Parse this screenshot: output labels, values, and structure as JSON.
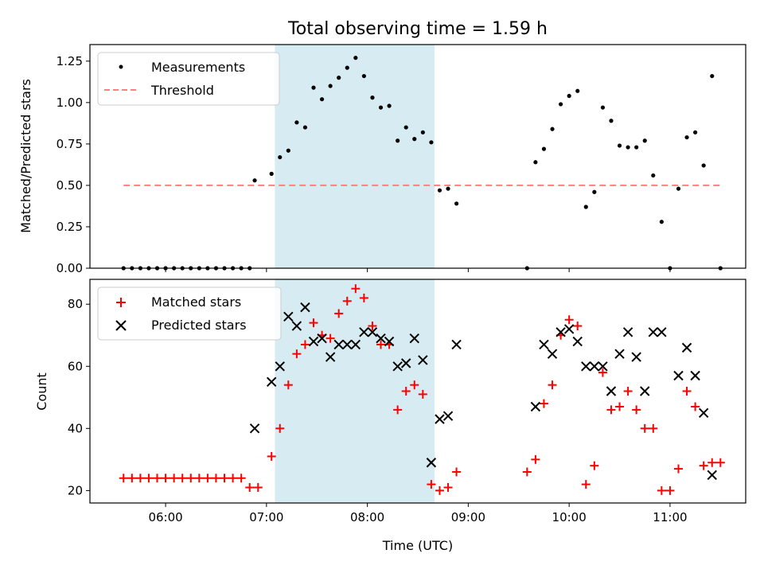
{
  "chart_data": [
    {
      "type": "scatter",
      "title": "Total observing time = 1.59 h",
      "xlabel": "",
      "ylabel": "Matched/Predicted stars",
      "ylim": [
        0,
        1.35
      ],
      "yticks": [
        "0.00",
        "0.25",
        "0.50",
        "0.75",
        "1.00",
        "1.25"
      ],
      "shaded_interval": [
        "07:05",
        "08:40"
      ],
      "legend": {
        "placement": "top-left",
        "entries": [
          "Measurements",
          "Threshold"
        ]
      },
      "series": [
        {
          "name": "Measurements",
          "marker": "dot",
          "color": "#000000",
          "points": [
            [
              "05:35",
              0
            ],
            [
              "05:40",
              0
            ],
            [
              "05:45",
              0
            ],
            [
              "05:50",
              0
            ],
            [
              "05:55",
              0
            ],
            [
              "06:00",
              0
            ],
            [
              "06:05",
              0
            ],
            [
              "06:10",
              0
            ],
            [
              "06:15",
              0
            ],
            [
              "06:20",
              0
            ],
            [
              "06:25",
              0
            ],
            [
              "06:30",
              0
            ],
            [
              "06:35",
              0
            ],
            [
              "06:40",
              0
            ],
            [
              "06:45",
              0
            ],
            [
              "06:50",
              0.0
            ],
            [
              "06:53",
              0.53
            ],
            [
              "07:03",
              0.57
            ],
            [
              "07:08",
              0.67
            ],
            [
              "07:13",
              0.71
            ],
            [
              "07:18",
              0.88
            ],
            [
              "07:23",
              0.85
            ],
            [
              "07:28",
              1.09
            ],
            [
              "07:33",
              1.02
            ],
            [
              "07:38",
              1.1
            ],
            [
              "07:43",
              1.15
            ],
            [
              "07:48",
              1.21
            ],
            [
              "07:53",
              1.27
            ],
            [
              "07:58",
              1.16
            ],
            [
              "08:03",
              1.03
            ],
            [
              "08:08",
              0.97
            ],
            [
              "08:13",
              0.98
            ],
            [
              "08:18",
              0.77
            ],
            [
              "08:23",
              0.85
            ],
            [
              "08:28",
              0.78
            ],
            [
              "08:33",
              0.82
            ],
            [
              "08:38",
              0.76
            ],
            [
              "08:43",
              0.47
            ],
            [
              "08:48",
              0.48
            ],
            [
              "08:53",
              0.39
            ],
            [
              "09:35",
              0
            ],
            [
              "09:40",
              0.64
            ],
            [
              "09:45",
              0.72
            ],
            [
              "09:50",
              0.84
            ],
            [
              "09:55",
              0.99
            ],
            [
              "10:00",
              1.04
            ],
            [
              "10:05",
              1.07
            ],
            [
              "10:10",
              0.37
            ],
            [
              "10:15",
              0.46
            ],
            [
              "10:20",
              0.97
            ],
            [
              "10:25",
              0.89
            ],
            [
              "10:30",
              0.74
            ],
            [
              "10:35",
              0.73
            ],
            [
              "10:40",
              0.73
            ],
            [
              "10:45",
              0.77
            ],
            [
              "10:50",
              0.56
            ],
            [
              "10:55",
              0.28
            ],
            [
              "11:00",
              0
            ],
            [
              "11:05",
              0.48
            ],
            [
              "11:10",
              0.79
            ],
            [
              "11:15",
              0.82
            ],
            [
              "11:20",
              0.62
            ],
            [
              "11:25",
              1.16
            ],
            [
              "11:30",
              0
            ]
          ]
        },
        {
          "name": "Threshold",
          "style": "dashed",
          "color": "#ff7f7f",
          "x": [
            "05:35",
            "11:30"
          ],
          "y": [
            0.5,
            0.5
          ]
        }
      ]
    },
    {
      "type": "scatter",
      "title": "",
      "xlabel": "Time (UTC)",
      "ylabel": "Count",
      "ylim": [
        16,
        88
      ],
      "yticks": [
        "20",
        "40",
        "60",
        "80"
      ],
      "xticks": [
        "06:00",
        "07:00",
        "08:00",
        "09:00",
        "10:00",
        "11:00"
      ],
      "xlim": [
        "05:15",
        "11:45"
      ],
      "shaded_interval": [
        "07:05",
        "08:40"
      ],
      "legend": {
        "placement": "top-left",
        "entries": [
          "Matched stars",
          "Predicted stars"
        ]
      },
      "series": [
        {
          "name": "Matched stars",
          "marker": "plus",
          "color": "#ff0000",
          "points": [
            [
              "05:35",
              24
            ],
            [
              "05:40",
              24
            ],
            [
              "05:45",
              24
            ],
            [
              "05:50",
              24
            ],
            [
              "05:55",
              24
            ],
            [
              "06:00",
              24
            ],
            [
              "06:05",
              24
            ],
            [
              "06:10",
              24
            ],
            [
              "06:15",
              24
            ],
            [
              "06:20",
              24
            ],
            [
              "06:25",
              24
            ],
            [
              "06:30",
              24
            ],
            [
              "06:35",
              24
            ],
            [
              "06:40",
              24
            ],
            [
              "06:45",
              24
            ],
            [
              "06:50",
              21
            ],
            [
              "06:55",
              21
            ],
            [
              "07:03",
              31
            ],
            [
              "07:08",
              40
            ],
            [
              "07:13",
              54
            ],
            [
              "07:18",
              64
            ],
            [
              "07:23",
              67
            ],
            [
              "07:28",
              74
            ],
            [
              "07:33",
              70
            ],
            [
              "07:38",
              69
            ],
            [
              "07:43",
              77
            ],
            [
              "07:48",
              81
            ],
            [
              "07:53",
              85
            ],
            [
              "07:58",
              82
            ],
            [
              "08:03",
              73
            ],
            [
              "08:08",
              67
            ],
            [
              "08:13",
              67
            ],
            [
              "08:18",
              46
            ],
            [
              "08:23",
              52
            ],
            [
              "08:28",
              54
            ],
            [
              "08:33",
              51
            ],
            [
              "08:38",
              22
            ],
            [
              "08:43",
              20
            ],
            [
              "08:48",
              21
            ],
            [
              "08:53",
              26
            ],
            [
              "09:35",
              26
            ],
            [
              "09:40",
              30
            ],
            [
              "09:45",
              48
            ],
            [
              "09:50",
              54
            ],
            [
              "09:55",
              70
            ],
            [
              "10:00",
              75
            ],
            [
              "10:05",
              73
            ],
            [
              "10:10",
              22
            ],
            [
              "10:15",
              28
            ],
            [
              "10:20",
              58
            ],
            [
              "10:25",
              46
            ],
            [
              "10:30",
              47
            ],
            [
              "10:35",
              52
            ],
            [
              "10:40",
              46
            ],
            [
              "10:45",
              40
            ],
            [
              "10:50",
              40
            ],
            [
              "10:55",
              20
            ],
            [
              "11:00",
              20
            ],
            [
              "11:05",
              27
            ],
            [
              "11:10",
              52
            ],
            [
              "11:15",
              47
            ],
            [
              "11:20",
              28
            ],
            [
              "11:25",
              29
            ],
            [
              "11:30",
              29
            ]
          ]
        },
        {
          "name": "Predicted stars",
          "marker": "x",
          "color": "#000000",
          "points": [
            [
              "06:53",
              40
            ],
            [
              "07:03",
              55
            ],
            [
              "07:08",
              60
            ],
            [
              "07:13",
              76
            ],
            [
              "07:18",
              73
            ],
            [
              "07:23",
              79
            ],
            [
              "07:28",
              68
            ],
            [
              "07:33",
              69
            ],
            [
              "07:38",
              63
            ],
            [
              "07:43",
              67
            ],
            [
              "07:48",
              67
            ],
            [
              "07:53",
              67
            ],
            [
              "07:58",
              71
            ],
            [
              "08:03",
              71
            ],
            [
              "08:08",
              69
            ],
            [
              "08:13",
              68
            ],
            [
              "08:18",
              60
            ],
            [
              "08:23",
              61
            ],
            [
              "08:28",
              69
            ],
            [
              "08:33",
              62
            ],
            [
              "08:38",
              29
            ],
            [
              "08:43",
              43
            ],
            [
              "08:48",
              44
            ],
            [
              "08:53",
              67
            ],
            [
              "09:40",
              47
            ],
            [
              "09:45",
              67
            ],
            [
              "09:50",
              64
            ],
            [
              "09:55",
              71
            ],
            [
              "10:00",
              72
            ],
            [
              "10:05",
              68
            ],
            [
              "10:10",
              60
            ],
            [
              "10:15",
              60
            ],
            [
              "10:20",
              60
            ],
            [
              "10:25",
              52
            ],
            [
              "10:30",
              64
            ],
            [
              "10:35",
              71
            ],
            [
              "10:40",
              63
            ],
            [
              "10:45",
              52
            ],
            [
              "10:50",
              71
            ],
            [
              "10:55",
              71
            ],
            [
              "11:05",
              57
            ],
            [
              "11:10",
              66
            ],
            [
              "11:15",
              57
            ],
            [
              "11:20",
              45
            ],
            [
              "11:25",
              25
            ]
          ]
        }
      ]
    }
  ]
}
